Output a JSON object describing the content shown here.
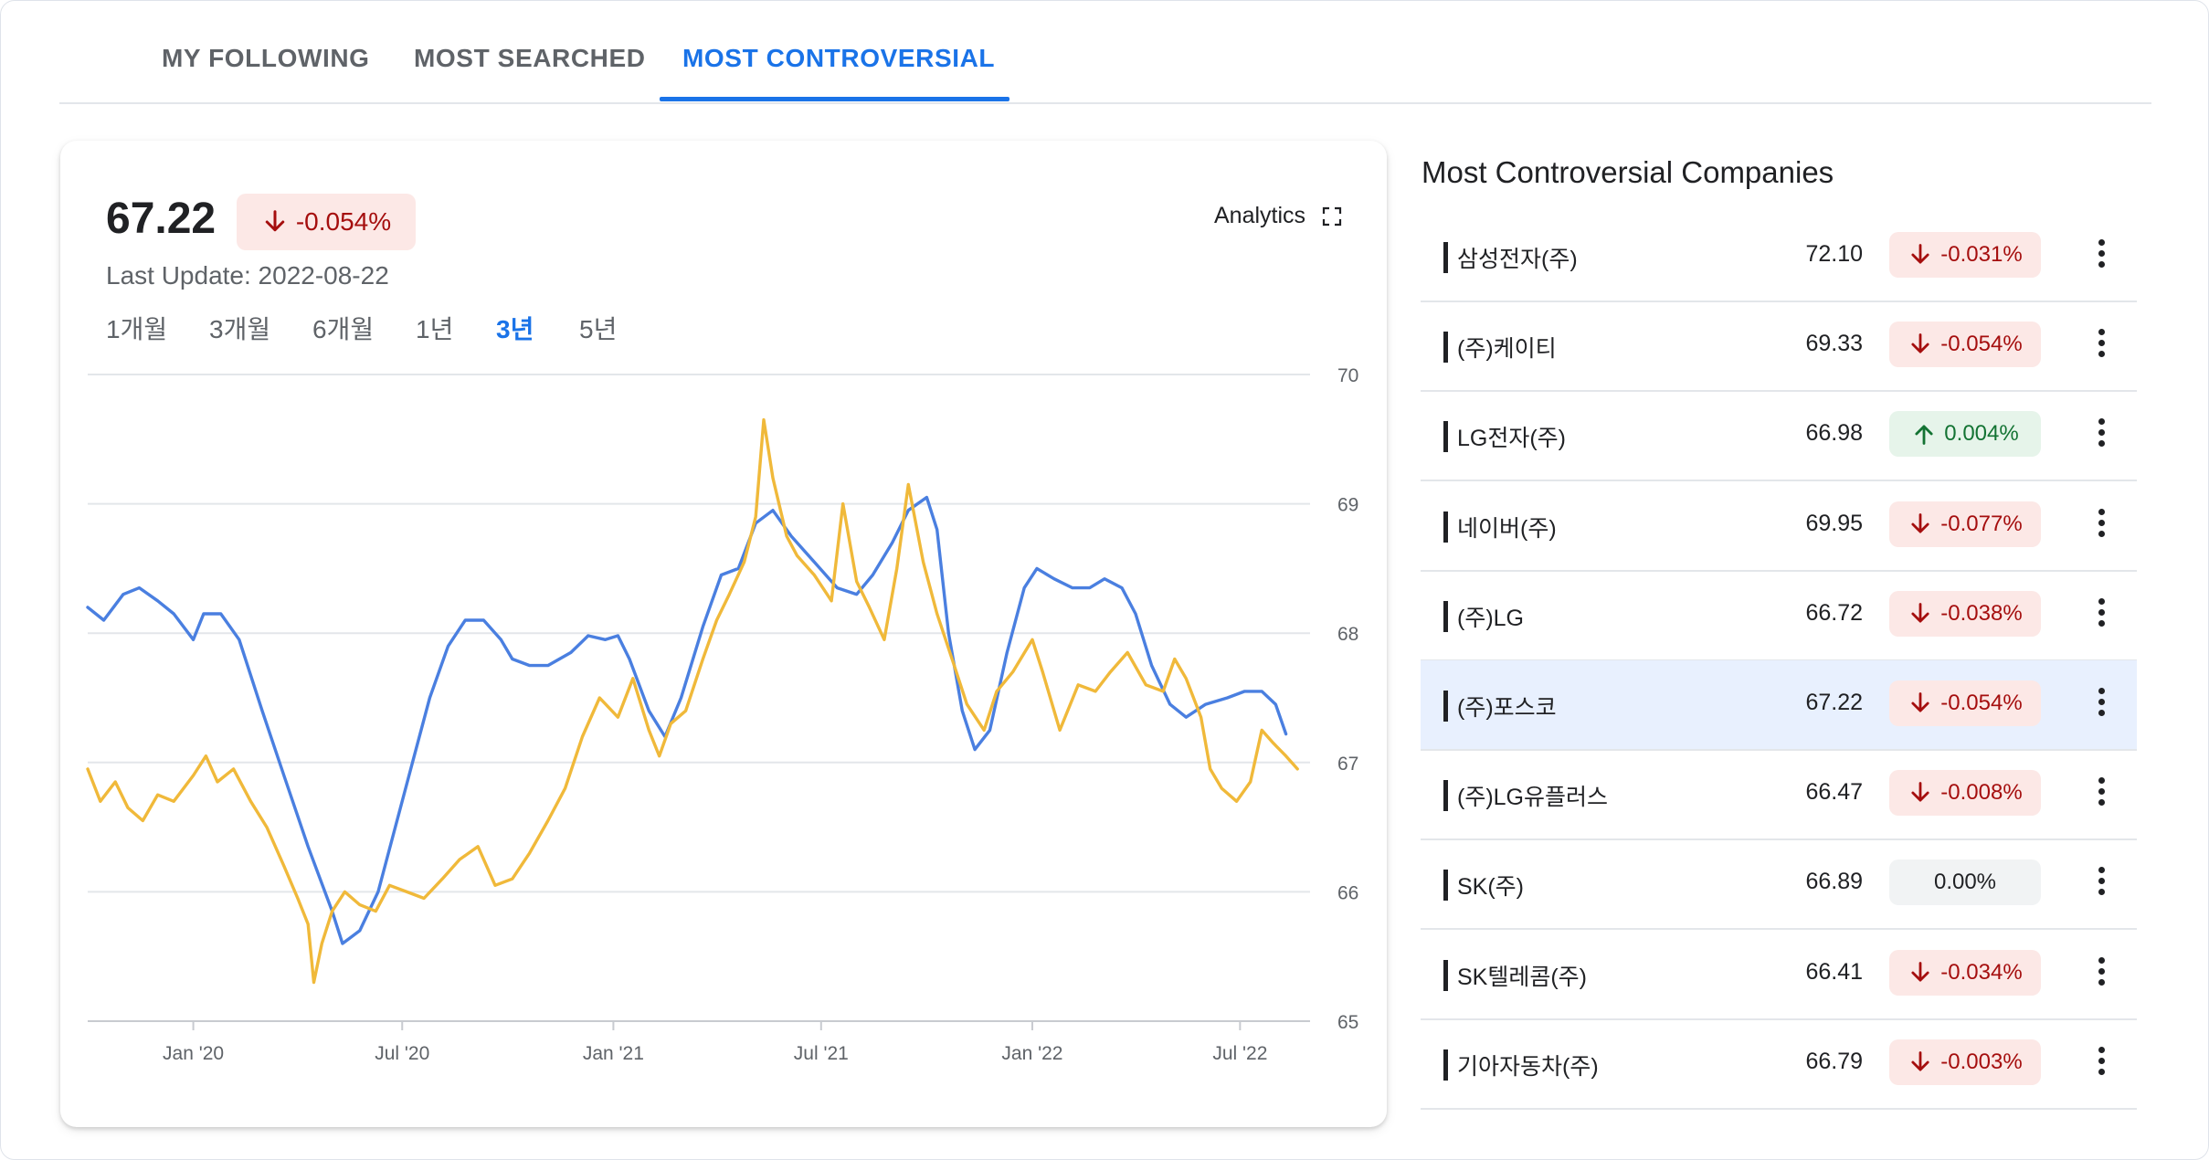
{
  "tabs": [
    {
      "label": "MY FOLLOWING"
    },
    {
      "label": "MOST SEARCHED"
    },
    {
      "label": "MOST CONTROVERSIAL"
    }
  ],
  "summary": {
    "price": "67.22",
    "change": "-0.054%",
    "change_direction": "down",
    "last_update": "Last Update: 2022-08-22",
    "analytics_label": "Analytics"
  },
  "ranges": [
    {
      "label": "1개월"
    },
    {
      "label": "3개월"
    },
    {
      "label": "6개월"
    },
    {
      "label": "1년"
    },
    {
      "label": "3년"
    },
    {
      "label": "5년"
    }
  ],
  "active_range": "3년",
  "colors": {
    "accent": "#1a73e8",
    "down": "#a50e0e",
    "down_bg": "#fce8e6",
    "up": "#137333",
    "up_bg": "#e6f4ea",
    "series_blue": "#4a7fe0",
    "series_yellow": "#f0b93a"
  },
  "chart_data": {
    "type": "line",
    "x_ticks": [
      "Jan '20",
      "Jul '20",
      "Jan '21",
      "Jul '21",
      "Jan '22",
      "Jul '22"
    ],
    "y_ticks": [
      70,
      69,
      68,
      67,
      66,
      65
    ],
    "ylim": [
      65,
      70
    ],
    "xlim": [
      "2019-10-01",
      "2022-08-31"
    ],
    "grid": true,
    "y_axis_position": "right",
    "series": [
      {
        "color": "#4a7fe0",
        "points": [
          [
            "2019-10-01",
            68.2
          ],
          [
            "2019-10-15",
            68.1
          ],
          [
            "2019-11-01",
            68.3
          ],
          [
            "2019-11-15",
            68.35
          ],
          [
            "2019-12-01",
            68.25
          ],
          [
            "2019-12-15",
            68.15
          ],
          [
            "2020-01-01",
            67.95
          ],
          [
            "2020-01-10",
            68.15
          ],
          [
            "2020-01-25",
            68.15
          ],
          [
            "2020-02-10",
            67.95
          ],
          [
            "2020-03-01",
            67.4
          ],
          [
            "2020-03-20",
            66.9
          ],
          [
            "2020-04-10",
            66.35
          ],
          [
            "2020-05-01",
            65.85
          ],
          [
            "2020-05-10",
            65.6
          ],
          [
            "2020-05-25",
            65.7
          ],
          [
            "2020-06-10",
            66.0
          ],
          [
            "2020-06-25",
            66.5
          ],
          [
            "2020-07-10",
            67.0
          ],
          [
            "2020-07-25",
            67.5
          ],
          [
            "2020-08-10",
            67.9
          ],
          [
            "2020-08-25",
            68.1
          ],
          [
            "2020-09-10",
            68.1
          ],
          [
            "2020-09-25",
            67.95
          ],
          [
            "2020-10-05",
            67.8
          ],
          [
            "2020-10-20",
            67.75
          ],
          [
            "2020-11-05",
            67.75
          ],
          [
            "2020-11-25",
            67.85
          ],
          [
            "2020-12-10",
            67.98
          ],
          [
            "2020-12-25",
            67.95
          ],
          [
            "2021-01-05",
            67.98
          ],
          [
            "2021-01-15",
            67.8
          ],
          [
            "2021-02-01",
            67.4
          ],
          [
            "2021-02-15",
            67.2
          ],
          [
            "2021-03-01",
            67.5
          ],
          [
            "2021-03-20",
            68.05
          ],
          [
            "2021-04-05",
            68.45
          ],
          [
            "2021-04-20",
            68.5
          ],
          [
            "2021-05-05",
            68.85
          ],
          [
            "2021-05-20",
            68.95
          ],
          [
            "2021-06-05",
            68.75
          ],
          [
            "2021-06-25",
            68.55
          ],
          [
            "2021-07-15",
            68.35
          ],
          [
            "2021-08-01",
            68.3
          ],
          [
            "2021-08-15",
            68.45
          ],
          [
            "2021-09-01",
            68.7
          ],
          [
            "2021-09-15",
            68.95
          ],
          [
            "2021-10-01",
            69.05
          ],
          [
            "2021-10-10",
            68.8
          ],
          [
            "2021-10-20",
            68.0
          ],
          [
            "2021-11-01",
            67.4
          ],
          [
            "2021-11-12",
            67.1
          ],
          [
            "2021-11-25",
            67.25
          ],
          [
            "2021-12-10",
            67.85
          ],
          [
            "2021-12-25",
            68.35
          ],
          [
            "2022-01-05",
            68.5
          ],
          [
            "2022-01-20",
            68.42
          ],
          [
            "2022-02-05",
            68.35
          ],
          [
            "2022-02-20",
            68.35
          ],
          [
            "2022-03-05",
            68.42
          ],
          [
            "2022-03-20",
            68.35
          ],
          [
            "2022-04-01",
            68.15
          ],
          [
            "2022-04-15",
            67.75
          ],
          [
            "2022-05-01",
            67.45
          ],
          [
            "2022-05-15",
            67.35
          ],
          [
            "2022-06-01",
            67.45
          ],
          [
            "2022-06-20",
            67.5
          ],
          [
            "2022-07-05",
            67.55
          ],
          [
            "2022-07-20",
            67.55
          ],
          [
            "2022-08-01",
            67.45
          ],
          [
            "2022-08-10",
            67.22
          ]
        ]
      },
      {
        "color": "#f0b93a",
        "points": [
          [
            "2019-10-01",
            66.95
          ],
          [
            "2019-10-12",
            66.7
          ],
          [
            "2019-10-25",
            66.85
          ],
          [
            "2019-11-05",
            66.65
          ],
          [
            "2019-11-18",
            66.55
          ],
          [
            "2019-12-01",
            66.75
          ],
          [
            "2019-12-15",
            66.7
          ],
          [
            "2020-01-01",
            66.9
          ],
          [
            "2020-01-12",
            67.05
          ],
          [
            "2020-01-22",
            66.85
          ],
          [
            "2020-02-05",
            66.95
          ],
          [
            "2020-02-20",
            66.7
          ],
          [
            "2020-03-05",
            66.5
          ],
          [
            "2020-03-20",
            66.2
          ],
          [
            "2020-04-01",
            65.95
          ],
          [
            "2020-04-10",
            65.75
          ],
          [
            "2020-04-15",
            65.3
          ],
          [
            "2020-04-22",
            65.6
          ],
          [
            "2020-05-01",
            65.85
          ],
          [
            "2020-05-12",
            66.0
          ],
          [
            "2020-05-25",
            65.9
          ],
          [
            "2020-06-08",
            65.85
          ],
          [
            "2020-06-20",
            66.05
          ],
          [
            "2020-07-05",
            66.0
          ],
          [
            "2020-07-20",
            65.95
          ],
          [
            "2020-08-05",
            66.1
          ],
          [
            "2020-08-20",
            66.25
          ],
          [
            "2020-09-05",
            66.35
          ],
          [
            "2020-09-20",
            66.05
          ],
          [
            "2020-10-05",
            66.1
          ],
          [
            "2020-10-20",
            66.3
          ],
          [
            "2020-11-05",
            66.55
          ],
          [
            "2020-11-20",
            66.8
          ],
          [
            "2020-12-05",
            67.2
          ],
          [
            "2020-12-20",
            67.5
          ],
          [
            "2021-01-05",
            67.35
          ],
          [
            "2021-01-18",
            67.65
          ],
          [
            "2021-02-01",
            67.25
          ],
          [
            "2021-02-10",
            67.05
          ],
          [
            "2021-02-20",
            67.3
          ],
          [
            "2021-03-05",
            67.4
          ],
          [
            "2021-03-20",
            67.8
          ],
          [
            "2021-04-01",
            68.1
          ],
          [
            "2021-04-12",
            68.3
          ],
          [
            "2021-04-25",
            68.55
          ],
          [
            "2021-05-05",
            68.9
          ],
          [
            "2021-05-12",
            69.65
          ],
          [
            "2021-05-20",
            69.2
          ],
          [
            "2021-06-01",
            68.75
          ],
          [
            "2021-06-10",
            68.6
          ],
          [
            "2021-06-25",
            68.45
          ],
          [
            "2021-07-10",
            68.25
          ],
          [
            "2021-07-20",
            69.0
          ],
          [
            "2021-08-01",
            68.4
          ],
          [
            "2021-08-12",
            68.2
          ],
          [
            "2021-08-25",
            67.95
          ],
          [
            "2021-09-05",
            68.5
          ],
          [
            "2021-09-15",
            69.15
          ],
          [
            "2021-09-28",
            68.55
          ],
          [
            "2021-10-10",
            68.15
          ],
          [
            "2021-10-25",
            67.75
          ],
          [
            "2021-11-05",
            67.45
          ],
          [
            "2021-11-20",
            67.25
          ],
          [
            "2021-12-01",
            67.55
          ],
          [
            "2021-12-15",
            67.7
          ],
          [
            "2022-01-01",
            67.95
          ],
          [
            "2022-01-10",
            67.7
          ],
          [
            "2022-01-25",
            67.25
          ],
          [
            "2022-02-10",
            67.6
          ],
          [
            "2022-02-25",
            67.55
          ],
          [
            "2022-03-10",
            67.7
          ],
          [
            "2022-03-25",
            67.85
          ],
          [
            "2022-04-10",
            67.6
          ],
          [
            "2022-04-25",
            67.55
          ],
          [
            "2022-05-05",
            67.8
          ],
          [
            "2022-05-15",
            67.65
          ],
          [
            "2022-05-28",
            67.35
          ],
          [
            "2022-06-05",
            66.95
          ],
          [
            "2022-06-15",
            66.8
          ],
          [
            "2022-06-28",
            66.7
          ],
          [
            "2022-07-10",
            66.85
          ],
          [
            "2022-07-20",
            67.25
          ],
          [
            "2022-07-30",
            67.15
          ],
          [
            "2022-08-10",
            67.05
          ],
          [
            "2022-08-20",
            66.95
          ]
        ]
      }
    ]
  },
  "list": {
    "title": "Most Controversial Companies",
    "selected_index": 5,
    "items": [
      {
        "name": "삼성전자(주)",
        "value": "72.10",
        "change": "-0.031%",
        "direction": "down"
      },
      {
        "name": "(주)케이티",
        "value": "69.33",
        "change": "-0.054%",
        "direction": "down"
      },
      {
        "name": "LG전자(주)",
        "value": "66.98",
        "change": "0.004%",
        "direction": "up"
      },
      {
        "name": "네이버(주)",
        "value": "69.95",
        "change": "-0.077%",
        "direction": "down"
      },
      {
        "name": "(주)LG",
        "value": "66.72",
        "change": "-0.038%",
        "direction": "down"
      },
      {
        "name": "(주)포스코",
        "value": "67.22",
        "change": "-0.054%",
        "direction": "down"
      },
      {
        "name": "(주)LG유플러스",
        "value": "66.47",
        "change": "-0.008%",
        "direction": "down"
      },
      {
        "name": "SK(주)",
        "value": "66.89",
        "change": "0.00%",
        "direction": "flat"
      },
      {
        "name": "SK텔레콤(주)",
        "value": "66.41",
        "change": "-0.034%",
        "direction": "down"
      },
      {
        "name": "기아자동차(주)",
        "value": "66.79",
        "change": "-0.003%",
        "direction": "down"
      }
    ]
  }
}
